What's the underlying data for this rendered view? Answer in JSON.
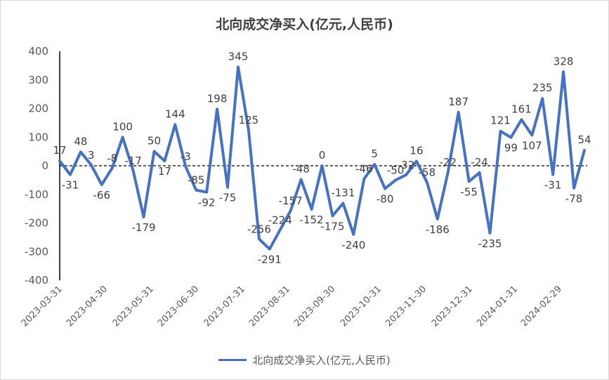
{
  "chart_data": {
    "type": "line",
    "title": "北向成交净买入(亿元,人民币)",
    "ylim": [
      -400,
      400
    ],
    "yticks": [
      400,
      300,
      200,
      100,
      0,
      -100,
      -200,
      -300,
      -400
    ],
    "xticks": [
      "2023-03-31",
      "2023-04-30",
      "2023-05-31",
      "2023-06-30",
      "2023-07-31",
      "2023-08-31",
      "2023-09-30",
      "2023-10-31",
      "2023-11-30",
      "2023-12-31",
      "2024-01-31",
      "2024-02-29"
    ],
    "legend_position": "bottom",
    "zero_line": "dashed",
    "color": "#4472C4",
    "series": [
      {
        "name": "北向成交净买入(亿元,人民币)",
        "values": [
          17,
          -31,
          48,
          3,
          -66,
          -8,
          100,
          -17,
          -179,
          50,
          17,
          144,
          -3,
          -85,
          -92,
          198,
          -75,
          345,
          125,
          -256,
          -291,
          -224,
          -157,
          -48,
          -152,
          0,
          -175,
          -131,
          -240,
          -46,
          5,
          -80,
          -50,
          -32,
          16,
          -58,
          -186,
          -22,
          187,
          -55,
          -24,
          -235,
          121,
          99,
          161,
          107,
          235,
          -31,
          328,
          -78,
          54
        ]
      }
    ]
  }
}
